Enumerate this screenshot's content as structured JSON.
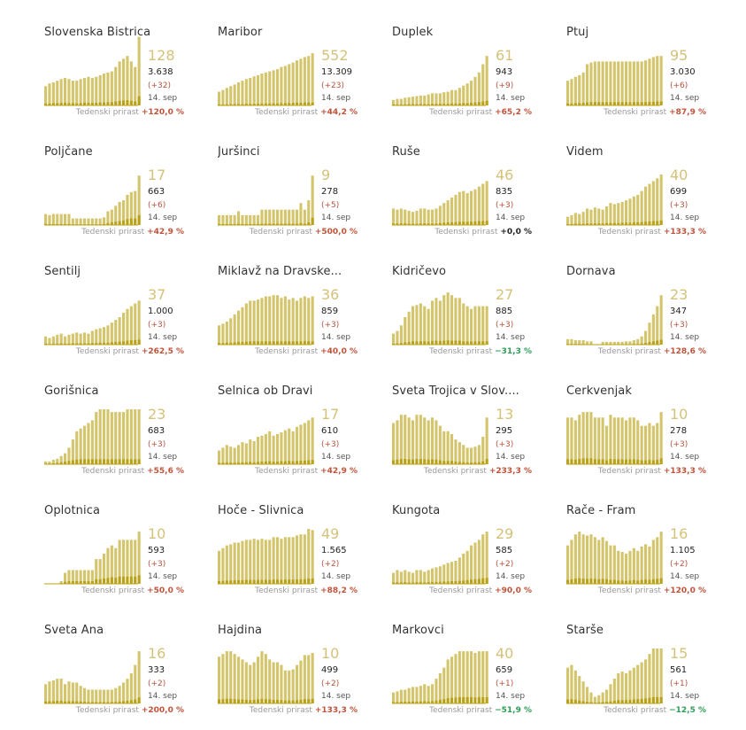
{
  "date_label": "14. sep",
  "growth_label": "Tedenski prirast",
  "colors": {
    "bar": "#d4c56c",
    "bar_light": "#ddd07f",
    "bar_dark": "#b9a217",
    "positive": "#c0533a",
    "negative": "#2f9d57",
    "big_number": "#d4c27a"
  },
  "chart_data": [
    {
      "type": "bar",
      "name": "Slovenska Bistrica",
      "big": "128",
      "total": "3.638",
      "delta": "(+32)",
      "growth": "+120,0 %",
      "sign": "pos",
      "values": [
        35,
        40,
        42,
        45,
        48,
        50,
        48,
        45,
        45,
        48,
        50,
        52,
        50,
        52,
        55,
        58,
        60,
        62,
        70,
        80,
        85,
        90,
        80,
        70,
        125
      ],
      "low": [
        6,
        6,
        7,
        7,
        8,
        8,
        7,
        7,
        6,
        7,
        8,
        8,
        8,
        8,
        9,
        9,
        10,
        10,
        12,
        14,
        15,
        16,
        14,
        12,
        28
      ]
    },
    {
      "type": "bar",
      "name": "Maribor",
      "big": "552",
      "total": "13.309",
      "delta": "(+23)",
      "growth": "+44,2 %",
      "sign": "pos",
      "values": [
        25,
        28,
        32,
        35,
        38,
        42,
        45,
        48,
        50,
        53,
        55,
        58,
        60,
        62,
        64,
        66,
        70,
        72,
        75,
        78,
        82,
        85,
        88,
        90,
        95
      ],
      "low": [
        3,
        3,
        3,
        4,
        4,
        4,
        4,
        5,
        5,
        5,
        5,
        6,
        6,
        6,
        6,
        6,
        7,
        7,
        7,
        8,
        8,
        8,
        9,
        9,
        9
      ]
    },
    {
      "type": "bar",
      "name": "Duplek",
      "big": "61",
      "total": "943",
      "delta": "(+9)",
      "growth": "+65,2 %",
      "sign": "pos",
      "values": [
        10,
        12,
        12,
        14,
        15,
        16,
        17,
        18,
        18,
        20,
        22,
        22,
        22,
        24,
        25,
        28,
        28,
        32,
        36,
        40,
        45,
        52,
        60,
        75,
        90
      ],
      "low": [
        3,
        3,
        3,
        3,
        4,
        4,
        4,
        4,
        4,
        4,
        5,
        5,
        5,
        5,
        5,
        6,
        6,
        6,
        7,
        7,
        8,
        9,
        10,
        12,
        14
      ]
    },
    {
      "type": "bar",
      "name": "Ptuj",
      "big": "95",
      "total": "3.030",
      "delta": "(+6)",
      "growth": "+87,9 %",
      "sign": "pos",
      "values": [
        45,
        48,
        52,
        55,
        60,
        75,
        78,
        80,
        80,
        80,
        80,
        80,
        80,
        80,
        80,
        80,
        80,
        80,
        80,
        80,
        82,
        85,
        88,
        90,
        90
      ],
      "low": [
        6,
        6,
        7,
        7,
        8,
        9,
        10,
        10,
        10,
        10,
        10,
        10,
        10,
        10,
        10,
        10,
        10,
        10,
        10,
        10,
        10,
        11,
        11,
        12,
        12
      ]
    },
    {
      "type": "bar",
      "name": "Poljčane",
      "big": "17",
      "total": "663",
      "delta": "(+6)",
      "growth": "+42,9 %",
      "sign": "pos",
      "values": [
        20,
        18,
        20,
        20,
        20,
        20,
        20,
        12,
        12,
        12,
        12,
        12,
        12,
        12,
        12,
        14,
        25,
        28,
        35,
        42,
        45,
        55,
        60,
        62,
        90
      ],
      "low": [
        3,
        3,
        3,
        3,
        3,
        3,
        3,
        2,
        2,
        2,
        2,
        2,
        2,
        2,
        2,
        3,
        6,
        8,
        10,
        12,
        14,
        18,
        20,
        20,
        30
      ]
    },
    {
      "type": "bar",
      "name": "Juršinci",
      "big": "9",
      "total": "278",
      "delta": "(+5)",
      "growth": "+500,0 %",
      "sign": "pos",
      "values": [
        18,
        18,
        18,
        18,
        18,
        25,
        18,
        18,
        18,
        18,
        18,
        28,
        28,
        28,
        28,
        28,
        28,
        28,
        28,
        28,
        28,
        40,
        28,
        45,
        90
      ],
      "low": [
        3,
        3,
        3,
        3,
        3,
        4,
        3,
        3,
        3,
        3,
        3,
        4,
        4,
        4,
        4,
        4,
        4,
        4,
        4,
        4,
        4,
        6,
        4,
        8,
        22
      ]
    },
    {
      "type": "bar",
      "name": "Ruše",
      "big": "46",
      "total": "835",
      "delta": "(+3)",
      "growth": "+0,0 %",
      "sign": "zero",
      "values": [
        30,
        28,
        30,
        28,
        26,
        24,
        26,
        30,
        30,
        28,
        28,
        30,
        35,
        40,
        45,
        50,
        55,
        60,
        62,
        58,
        62,
        65,
        70,
        75,
        80
      ],
      "low": [
        5,
        5,
        5,
        5,
        4,
        4,
        4,
        5,
        5,
        5,
        5,
        5,
        6,
        7,
        8,
        8,
        9,
        10,
        10,
        10,
        10,
        11,
        12,
        12,
        13
      ]
    },
    {
      "type": "bar",
      "name": "Videm",
      "big": "40",
      "total": "699",
      "delta": "(+3)",
      "growth": "+133,3 %",
      "sign": "pos",
      "values": [
        15,
        18,
        22,
        20,
        24,
        30,
        28,
        32,
        30,
        28,
        34,
        40,
        38,
        40,
        42,
        45,
        48,
        52,
        55,
        62,
        70,
        75,
        80,
        85,
        92
      ],
      "low": [
        3,
        3,
        4,
        4,
        4,
        5,
        5,
        5,
        5,
        5,
        6,
        6,
        6,
        6,
        7,
        7,
        7,
        8,
        8,
        9,
        10,
        11,
        12,
        12,
        14
      ]
    },
    {
      "type": "bar",
      "name": "Šentilj",
      "big": "37",
      "total": "1.000",
      "delta": "(+3)",
      "growth": "+262,5 %",
      "sign": "pos",
      "values": [
        15,
        12,
        15,
        18,
        20,
        15,
        18,
        20,
        22,
        20,
        22,
        20,
        25,
        28,
        30,
        32,
        35,
        40,
        45,
        50,
        58,
        65,
        70,
        75,
        80
      ],
      "low": [
        3,
        2,
        3,
        3,
        4,
        3,
        3,
        4,
        4,
        4,
        4,
        4,
        5,
        5,
        6,
        6,
        6,
        7,
        8,
        9,
        10,
        12,
        13,
        14,
        15
      ]
    },
    {
      "type": "bar",
      "name": "Miklavž na Dravske...",
      "big": "36",
      "total": "859",
      "delta": "(+3)",
      "growth": "+40,0 %",
      "sign": "pos",
      "values": [
        35,
        38,
        42,
        48,
        55,
        62,
        68,
        75,
        80,
        80,
        82,
        85,
        88,
        88,
        90,
        90,
        85,
        88,
        82,
        85,
        80,
        85,
        88,
        85,
        88
      ],
      "low": [
        5,
        5,
        6,
        6,
        7,
        8,
        8,
        9,
        10,
        10,
        10,
        10,
        10,
        10,
        10,
        10,
        10,
        10,
        10,
        10,
        10,
        10,
        10,
        10,
        10
      ]
    },
    {
      "type": "bar",
      "name": "Kidričevo",
      "big": "27",
      "total": "885",
      "delta": "(+3)",
      "growth": "−31,3 %",
      "sign": "neg",
      "values": [
        20,
        25,
        35,
        50,
        60,
        70,
        72,
        75,
        70,
        65,
        80,
        85,
        80,
        90,
        95,
        90,
        85,
        85,
        75,
        70,
        65,
        70,
        70,
        70,
        70
      ],
      "low": [
        3,
        4,
        5,
        7,
        8,
        10,
        10,
        10,
        10,
        9,
        11,
        12,
        11,
        12,
        13,
        12,
        12,
        12,
        10,
        10,
        9,
        10,
        10,
        10,
        10
      ]
    },
    {
      "type": "bar",
      "name": "Dornava",
      "big": "23",
      "total": "347",
      "delta": "(+3)",
      "growth": "+128,6 %",
      "sign": "pos",
      "values": [
        10,
        10,
        8,
        8,
        8,
        6,
        6,
        0,
        0,
        5,
        5,
        5,
        5,
        5,
        5,
        6,
        6,
        8,
        10,
        15,
        25,
        40,
        55,
        70,
        90
      ],
      "low": [
        2,
        2,
        2,
        2,
        2,
        1,
        1,
        0,
        0,
        1,
        1,
        1,
        1,
        1,
        1,
        1,
        1,
        2,
        2,
        3,
        5,
        8,
        10,
        12,
        15
      ]
    },
    {
      "type": "bar",
      "name": "Gorišnica",
      "big": "23",
      "total": "683",
      "delta": "(+3)",
      "growth": "+55,6 %",
      "sign": "pos",
      "values": [
        5,
        5,
        8,
        10,
        15,
        20,
        30,
        45,
        60,
        65,
        70,
        75,
        80,
        95,
        100,
        100,
        100,
        95,
        95,
        95,
        95,
        100,
        100,
        100,
        100
      ],
      "low": [
        2,
        2,
        3,
        4,
        6,
        8,
        10,
        12,
        14,
        15,
        15,
        15,
        15,
        15,
        15,
        15,
        15,
        15,
        15,
        15,
        15,
        15,
        15,
        15,
        15
      ]
    },
    {
      "type": "bar",
      "name": "Selnica ob Dravi",
      "big": "17",
      "total": "610",
      "delta": "(+3)",
      "growth": "+42,9 %",
      "sign": "pos",
      "values": [
        25,
        30,
        35,
        32,
        30,
        35,
        40,
        38,
        45,
        42,
        50,
        52,
        55,
        60,
        52,
        55,
        58,
        62,
        65,
        60,
        68,
        72,
        75,
        80,
        85
      ],
      "low": [
        4,
        5,
        5,
        5,
        5,
        5,
        6,
        6,
        7,
        6,
        7,
        8,
        8,
        9,
        8,
        8,
        9,
        9,
        10,
        9,
        10,
        11,
        11,
        12,
        13
      ]
    },
    {
      "type": "bar",
      "name": "Sveta Trojica v Slov....",
      "big": "13",
      "total": "295",
      "delta": "(+3)",
      "growth": "+233,3 %",
      "sign": "pos",
      "values": [
        75,
        80,
        90,
        90,
        85,
        80,
        90,
        90,
        85,
        80,
        85,
        80,
        70,
        60,
        60,
        55,
        45,
        40,
        35,
        30,
        30,
        32,
        35,
        50,
        85
      ],
      "low": [
        12,
        14,
        16,
        16,
        15,
        14,
        16,
        16,
        15,
        14,
        15,
        14,
        12,
        10,
        10,
        10,
        8,
        7,
        6,
        5,
        5,
        6,
        6,
        9,
        16
      ]
    },
    {
      "type": "bar",
      "name": "Cerkvenjak",
      "big": "10",
      "total": "278",
      "delta": "(+3)",
      "growth": "+133,3 %",
      "sign": "pos",
      "values": [
        85,
        85,
        80,
        90,
        95,
        95,
        95,
        85,
        85,
        85,
        70,
        90,
        85,
        85,
        85,
        80,
        85,
        85,
        80,
        70,
        70,
        75,
        70,
        75,
        95
      ],
      "low": [
        15,
        15,
        14,
        16,
        18,
        18,
        18,
        15,
        15,
        15,
        12,
        16,
        15,
        15,
        15,
        14,
        15,
        15,
        14,
        12,
        12,
        13,
        12,
        13,
        18
      ]
    },
    {
      "type": "bar",
      "name": "Oplotnica",
      "big": "10",
      "total": "593",
      "delta": "(+3)",
      "growth": "+50,0 %",
      "sign": "pos",
      "values": [
        0,
        0,
        0,
        0,
        5,
        20,
        25,
        25,
        25,
        25,
        25,
        25,
        25,
        45,
        45,
        55,
        65,
        70,
        65,
        80,
        80,
        80,
        80,
        80,
        95
      ],
      "low": [
        0,
        0,
        0,
        0,
        2,
        6,
        8,
        8,
        8,
        8,
        8,
        8,
        8,
        14,
        14,
        16,
        18,
        20,
        18,
        22,
        22,
        22,
        22,
        22,
        26
      ]
    },
    {
      "type": "bar",
      "name": "Hoče - Slivnica",
      "big": "49",
      "total": "1.565",
      "delta": "(+2)",
      "growth": "+88,2 %",
      "sign": "pos",
      "values": [
        60,
        65,
        70,
        72,
        75,
        75,
        78,
        80,
        80,
        82,
        80,
        82,
        80,
        80,
        85,
        85,
        82,
        85,
        85,
        85,
        88,
        90,
        90,
        100,
        98
      ],
      "low": [
        8,
        9,
        10,
        10,
        11,
        11,
        11,
        12,
        12,
        12,
        12,
        12,
        12,
        12,
        13,
        13,
        12,
        13,
        13,
        13,
        13,
        14,
        14,
        16,
        16
      ]
    },
    {
      "type": "bar",
      "name": "Kungota",
      "big": "29",
      "total": "585",
      "delta": "(+2)",
      "growth": "+90,0 %",
      "sign": "pos",
      "values": [
        20,
        25,
        22,
        25,
        22,
        20,
        25,
        25,
        22,
        25,
        28,
        30,
        32,
        35,
        38,
        40,
        42,
        48,
        55,
        60,
        70,
        75,
        80,
        90,
        95
      ],
      "low": [
        4,
        5,
        4,
        5,
        4,
        4,
        5,
        5,
        4,
        5,
        5,
        6,
        6,
        7,
        7,
        8,
        8,
        9,
        10,
        11,
        13,
        14,
        15,
        17,
        18
      ]
    },
    {
      "type": "bar",
      "name": "Rače - Fram",
      "big": "16",
      "total": "1.105",
      "delta": "(+2)",
      "growth": "+120,0 %",
      "sign": "pos",
      "values": [
        70,
        80,
        90,
        95,
        90,
        88,
        90,
        85,
        80,
        85,
        78,
        70,
        70,
        60,
        58,
        55,
        60,
        65,
        60,
        68,
        72,
        68,
        80,
        85,
        95
      ],
      "low": [
        12,
        14,
        16,
        17,
        16,
        15,
        16,
        15,
        14,
        15,
        14,
        12,
        12,
        10,
        10,
        9,
        10,
        11,
        10,
        12,
        13,
        12,
        14,
        15,
        17
      ]
    },
    {
      "type": "bar",
      "name": "Sveta Ana",
      "big": "16",
      "total": "333",
      "delta": "(+2)",
      "growth": "+200,0 %",
      "sign": "pos",
      "values": [
        35,
        40,
        42,
        45,
        45,
        35,
        40,
        38,
        38,
        32,
        28,
        25,
        25,
        25,
        25,
        25,
        25,
        25,
        28,
        32,
        38,
        45,
        55,
        70,
        95
      ],
      "low": [
        6,
        7,
        7,
        8,
        8,
        6,
        7,
        7,
        7,
        6,
        5,
        4,
        4,
        4,
        4,
        4,
        4,
        4,
        5,
        6,
        7,
        8,
        10,
        12,
        18
      ]
    },
    {
      "type": "bar",
      "name": "Hajdina",
      "big": "10",
      "total": "499",
      "delta": "(+2)",
      "growth": "+133,3 %",
      "sign": "pos",
      "values": [
        85,
        90,
        95,
        95,
        90,
        85,
        80,
        75,
        70,
        75,
        85,
        95,
        90,
        80,
        75,
        75,
        70,
        60,
        60,
        62,
        70,
        78,
        88,
        88,
        92
      ],
      "low": [
        12,
        13,
        14,
        14,
        13,
        12,
        12,
        11,
        10,
        11,
        12,
        14,
        13,
        12,
        11,
        11,
        10,
        9,
        9,
        9,
        10,
        11,
        13,
        13,
        14
      ]
    },
    {
      "type": "bar",
      "name": "Markovci",
      "big": "40",
      "total": "659",
      "delta": "(+1)",
      "growth": "−51,9 %",
      "sign": "neg",
      "values": [
        20,
        22,
        25,
        25,
        28,
        30,
        30,
        32,
        35,
        32,
        35,
        45,
        55,
        65,
        80,
        85,
        90,
        95,
        95,
        95,
        95,
        92,
        95,
        95,
        95
      ],
      "low": [
        4,
        4,
        5,
        5,
        5,
        6,
        6,
        6,
        7,
        6,
        7,
        9,
        11,
        13,
        16,
        17,
        18,
        19,
        19,
        19,
        19,
        18,
        19,
        19,
        19
      ]
    },
    {
      "type": "bar",
      "name": "Starše",
      "big": "15",
      "total": "561",
      "delta": "(+1)",
      "growth": "−12,5 %",
      "sign": "neg",
      "values": [
        65,
        70,
        60,
        50,
        40,
        30,
        20,
        12,
        15,
        20,
        25,
        35,
        45,
        55,
        58,
        55,
        60,
        65,
        70,
        75,
        80,
        90,
        100,
        100,
        100
      ],
      "low": [
        12,
        13,
        11,
        9,
        7,
        5,
        4,
        2,
        3,
        4,
        5,
        6,
        8,
        10,
        10,
        10,
        11,
        12,
        13,
        14,
        15,
        17,
        19,
        19,
        19
      ]
    }
  ]
}
